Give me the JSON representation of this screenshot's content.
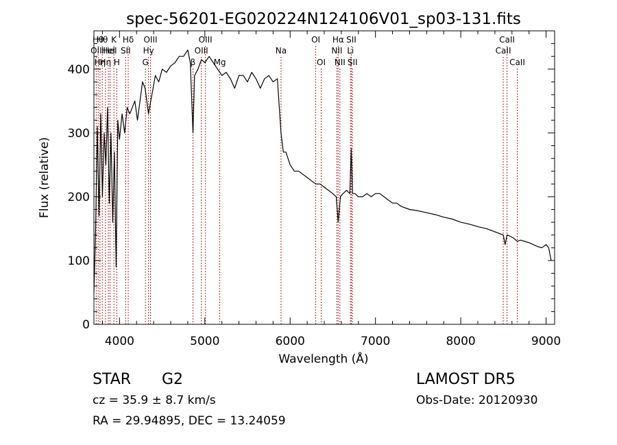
{
  "chart_data": {
    "type": "line",
    "title": "spec-56201-EG020224N124106V01_sp03-131.fits",
    "xlabel": "Wavelength (Å)",
    "ylabel": "Flux (relative)",
    "xlim": [
      3700,
      9100
    ],
    "ylim": [
      0,
      460
    ],
    "x_ticks": [
      4000,
      5000,
      6000,
      7000,
      8000,
      9000
    ],
    "x_tick_labels": [
      "4000",
      "5000",
      "6000",
      "7000",
      "8000",
      "9000"
    ],
    "y_ticks": [
      0,
      100,
      200,
      300,
      400
    ],
    "y_tick_labels": [
      "0",
      "100",
      "200",
      "300",
      "400"
    ],
    "grid": false,
    "series": [
      {
        "color": "#000000",
        "x": [
          3700,
          3720,
          3740,
          3760,
          3780,
          3800,
          3820,
          3840,
          3860,
          3880,
          3900,
          3920,
          3940,
          3960,
          3980,
          4000,
          4030,
          4060,
          4090,
          4120,
          4150,
          4180,
          4210,
          4240,
          4270,
          4300,
          4340,
          4380,
          4420,
          4460,
          4500,
          4550,
          4600,
          4650,
          4700,
          4750,
          4800,
          4830,
          4861,
          4880,
          4920,
          4960,
          5000,
          5050,
          5100,
          5150,
          5200,
          5250,
          5300,
          5350,
          5400,
          5450,
          5500,
          5550,
          5600,
          5650,
          5700,
          5750,
          5800,
          5850,
          5893,
          5920,
          5950,
          6000,
          6050,
          6100,
          6150,
          6200,
          6250,
          6300,
          6350,
          6400,
          6450,
          6500,
          6540,
          6563,
          6590,
          6620,
          6660,
          6700,
          6717,
          6731,
          6760,
          6800,
          6850,
          6900,
          6950,
          7000,
          7050,
          7100,
          7150,
          7200,
          7250,
          7300,
          7400,
          7500,
          7600,
          7700,
          7800,
          7900,
          8000,
          8100,
          8200,
          8300,
          8400,
          8498,
          8520,
          8542,
          8580,
          8620,
          8662,
          8700,
          8750,
          8800,
          8850,
          8900,
          8950,
          9000,
          9030,
          9060
        ],
        "values": [
          50,
          150,
          310,
          170,
          330,
          200,
          300,
          250,
          340,
          190,
          300,
          160,
          270,
          90,
          320,
          290,
          330,
          300,
          340,
          330,
          340,
          350,
          320,
          350,
          380,
          370,
          330,
          360,
          390,
          380,
          400,
          395,
          405,
          410,
          420,
          420,
          430,
          410,
          300,
          390,
          400,
          415,
          410,
          420,
          410,
          400,
          390,
          395,
          385,
          370,
          390,
          390,
          380,
          395,
          385,
          370,
          385,
          390,
          380,
          385,
          300,
          270,
          270,
          250,
          240,
          240,
          235,
          230,
          225,
          220,
          220,
          215,
          210,
          205,
          200,
          160,
          200,
          205,
          210,
          205,
          275,
          205,
          205,
          200,
          200,
          205,
          200,
          205,
          205,
          200,
          195,
          190,
          190,
          185,
          180,
          178,
          175,
          172,
          168,
          165,
          160,
          157,
          153,
          150,
          145,
          140,
          125,
          140,
          138,
          135,
          130,
          132,
          130,
          128,
          125,
          122,
          120,
          125,
          120,
          100
        ]
      }
    ],
    "line_markers": [
      {
        "x": 3727,
        "label": "OII",
        "row": 2
      },
      {
        "x": 3750,
        "label": "Hθ",
        "row": 1
      },
      {
        "x": 3771,
        "label": "Hη",
        "row": 3
      },
      {
        "x": 3798,
        "label": "Hθ",
        "row": 1
      },
      {
        "x": 3835,
        "label": "Hη",
        "row": 3
      },
      {
        "x": 3869,
        "label": "HeI",
        "row": 2
      },
      {
        "x": 3889,
        "label": "HeI",
        "row": 2
      },
      {
        "x": 3934,
        "label": "K",
        "row": 1
      },
      {
        "x": 3968,
        "label": "H",
        "row": 3
      },
      {
        "x": 4072,
        "label": "SII",
        "row": 2
      },
      {
        "x": 4102,
        "label": "Hδ",
        "row": 1
      },
      {
        "x": 4304,
        "label": "G",
        "row": 3
      },
      {
        "x": 4340,
        "label": "Hγ",
        "row": 2
      },
      {
        "x": 4363,
        "label": "OIII",
        "row": 1
      },
      {
        "x": 4861,
        "label": "β",
        "row": 3
      },
      {
        "x": 4959,
        "label": "OIII",
        "row": 2
      },
      {
        "x": 5007,
        "label": "OIII",
        "row": 1
      },
      {
        "x": 5175,
        "label": "Mg",
        "row": 3
      },
      {
        "x": 5893,
        "label": "Na",
        "row": 2
      },
      {
        "x": 6300,
        "label": "OI",
        "row": 1
      },
      {
        "x": 6364,
        "label": "OI",
        "row": 3
      },
      {
        "x": 6548,
        "label": "NII",
        "row": 2
      },
      {
        "x": 6563,
        "label": "Hα",
        "row": 1
      },
      {
        "x": 6583,
        "label": "NII",
        "row": 3
      },
      {
        "x": 6707,
        "label": "Li",
        "row": 2
      },
      {
        "x": 6717,
        "label": "SII",
        "row": 1
      },
      {
        "x": 6731,
        "label": "SII",
        "row": 3
      },
      {
        "x": 8498,
        "label": "CaII",
        "row": 2
      },
      {
        "x": 8542,
        "label": "CaII",
        "row": 1
      },
      {
        "x": 8662,
        "label": "CaII",
        "row": 3
      }
    ]
  },
  "info": {
    "object_class": "STAR",
    "subclass": "G2",
    "survey": "LAMOST  DR5",
    "cz": "cz = 35.9 ± 8.7 km/s",
    "obs_date": "Obs-Date: 20120930",
    "coords": "RA =  29.94895, DEC =  13.24059"
  }
}
